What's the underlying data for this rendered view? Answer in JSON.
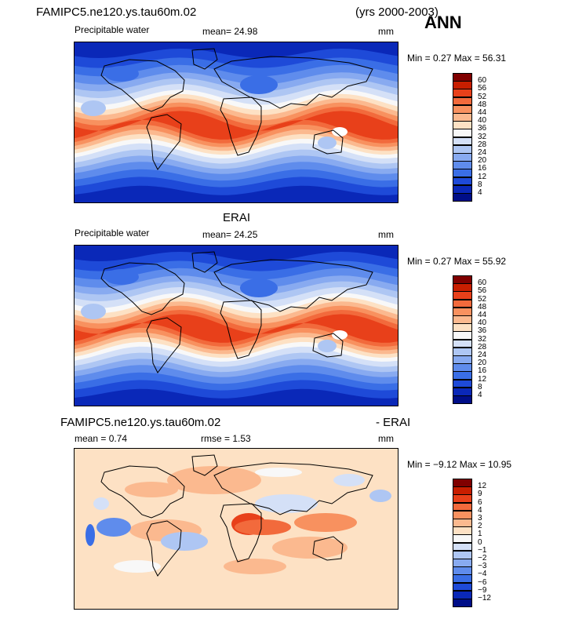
{
  "header": {
    "case_name": "FAMIPC5.ne120.ys.tau60m.02",
    "years": "(yrs 2000-2003)",
    "season": "ANN"
  },
  "panels": [
    {
      "title": "",
      "variable": "Precipitable water",
      "stat_line": "mean=   24.98",
      "units": "mm",
      "minmax": "Min =   0.27  Max =   56.31",
      "legend_labels": [
        "60",
        "56",
        "52",
        "48",
        "44",
        "40",
        "36",
        "32",
        "28",
        "24",
        "20",
        "16",
        "12",
        "8",
        "4"
      ],
      "legend_colors": [
        "#800000",
        "#c81e00",
        "#e8401a",
        "#f26a3c",
        "#f8915f",
        "#fbb98f",
        "#fde1c4",
        "#f8f8f8",
        "#d4e0f7",
        "#aec6f3",
        "#88aaf0",
        "#5f8cec",
        "#3a6ee6",
        "#1e4ad8",
        "#0a28b8",
        "#000e88"
      ],
      "kind": "pw"
    },
    {
      "title": "ERAI",
      "variable": "Precipitable water",
      "stat_line": "mean=   24.25",
      "units": "mm",
      "minmax": "Min =   0.27  Max =   55.92",
      "legend_labels": [
        "60",
        "56",
        "52",
        "48",
        "44",
        "40",
        "36",
        "32",
        "28",
        "24",
        "20",
        "16",
        "12",
        "8",
        "4"
      ],
      "legend_colors": [
        "#800000",
        "#c81e00",
        "#e8401a",
        "#f26a3c",
        "#f8915f",
        "#fbb98f",
        "#fde1c4",
        "#f8f8f8",
        "#d4e0f7",
        "#aec6f3",
        "#88aaf0",
        "#5f8cec",
        "#3a6ee6",
        "#1e4ad8",
        "#0a28b8",
        "#000e88"
      ],
      "kind": "pw"
    },
    {
      "title_left": "FAMIPC5.ne120.ys.tau60m.02",
      "title_right": "- ERAI",
      "mean_line": "mean =     0.74",
      "rmse_line": "rmse =     1.53",
      "units": "mm",
      "minmax": "Min =  −9.12  Max =   10.95",
      "legend_labels": [
        "12",
        "9",
        "6",
        "4",
        "3",
        "2",
        "1",
        "0",
        "−1",
        "−2",
        "−3",
        "−4",
        "−6",
        "−9",
        "−12"
      ],
      "legend_colors": [
        "#800000",
        "#c81e00",
        "#e8401a",
        "#f26a3c",
        "#f8915f",
        "#fbb98f",
        "#fde1c4",
        "#f8f8f8",
        "#d4e0f7",
        "#aec6f3",
        "#88aaf0",
        "#5f8cec",
        "#3a6ee6",
        "#1e4ad8",
        "#0a28b8",
        "#000e88"
      ],
      "kind": "diff"
    }
  ],
  "chart_data": [
    {
      "type": "heatmap",
      "title": "FAMIPC5.ne120.ys.tau60m.02",
      "subtitle": "Precipitable water",
      "units": "mm",
      "mean": 24.98,
      "min": 0.27,
      "max": 56.31,
      "contour_levels": [
        4,
        8,
        12,
        16,
        20,
        24,
        28,
        32,
        36,
        40,
        44,
        48,
        52,
        56,
        60
      ]
    },
    {
      "type": "heatmap",
      "title": "ERAI",
      "subtitle": "Precipitable water",
      "units": "mm",
      "mean": 24.25,
      "min": 0.27,
      "max": 55.92,
      "contour_levels": [
        4,
        8,
        12,
        16,
        20,
        24,
        28,
        32,
        36,
        40,
        44,
        48,
        52,
        56,
        60
      ]
    },
    {
      "type": "heatmap",
      "title": "FAMIPC5.ne120.ys.tau60m.02 - ERAI",
      "units": "mm",
      "mean": 0.74,
      "rmse": 1.53,
      "min": -9.12,
      "max": 10.95,
      "contour_levels": [
        -12,
        -9,
        -6,
        -4,
        -3,
        -2,
        -1,
        0,
        1,
        2,
        3,
        4,
        6,
        9,
        12
      ]
    }
  ]
}
